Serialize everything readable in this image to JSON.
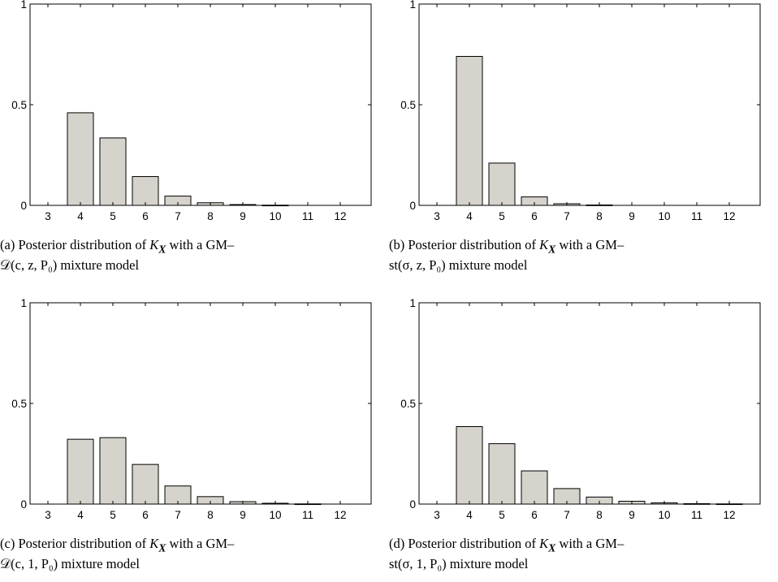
{
  "chart_data": [
    {
      "type": "bar",
      "categories": [
        "3",
        "4",
        "5",
        "6",
        "7",
        "8",
        "9",
        "10",
        "11",
        "12"
      ],
      "values": [
        0,
        0.46,
        0.335,
        0.143,
        0.046,
        0.013,
        0.004,
        0.001,
        0.0,
        0.0
      ],
      "ylim": [
        0,
        1
      ],
      "yticks": [
        "0",
        "0.5",
        "1"
      ],
      "grid": false,
      "caption": {
        "label": "(a) Posterior distribution of",
        "var": "K",
        "sub": "X",
        "line1_rest": "with a GM–",
        "line2": "𝒟(c, z, P₀) mixture model"
      }
    },
    {
      "type": "bar",
      "categories": [
        "3",
        "4",
        "5",
        "6",
        "7",
        "8",
        "9",
        "10",
        "11",
        "12"
      ],
      "values": [
        0,
        0.74,
        0.21,
        0.042,
        0.008,
        0.002,
        0.0,
        0.0,
        0.0,
        0.0
      ],
      "ylim": [
        0,
        1
      ],
      "yticks": [
        "0",
        "0.5",
        "1"
      ],
      "grid": false,
      "caption": {
        "label": "(b) Posterior distribution of",
        "var": "K",
        "sub": "X",
        "line1_rest": "with a GM–",
        "line2": "st(σ, z, P₀) mixture model"
      }
    },
    {
      "type": "bar",
      "categories": [
        "3",
        "4",
        "5",
        "6",
        "7",
        "8",
        "9",
        "10",
        "11",
        "12"
      ],
      "values": [
        0,
        0.322,
        0.33,
        0.197,
        0.09,
        0.037,
        0.012,
        0.004,
        0.001,
        0.0
      ],
      "ylim": [
        0,
        1
      ],
      "yticks": [
        "0",
        "0.5",
        "1"
      ],
      "grid": false,
      "caption": {
        "label": "(c) Posterior distribution of",
        "var": "K",
        "sub": "X",
        "line1_rest": "with a GM–",
        "line2": "𝒟(c, 1, P₀) mixture model"
      }
    },
    {
      "type": "bar",
      "categories": [
        "3",
        "4",
        "5",
        "6",
        "7",
        "8",
        "9",
        "10",
        "11",
        "12"
      ],
      "values": [
        0,
        0.385,
        0.3,
        0.165,
        0.077,
        0.035,
        0.014,
        0.006,
        0.002,
        0.001
      ],
      "ylim": [
        0,
        1
      ],
      "yticks": [
        "0",
        "0.5",
        "1"
      ],
      "grid": false,
      "caption": {
        "label": "(d) Posterior distribution of",
        "var": "K",
        "sub": "X",
        "line1_rest": "with a GM–",
        "line2": "st(σ, 1, P₀) mixture model"
      }
    }
  ],
  "colors": {
    "bar_fill": "#d6d3cc",
    "bar_stroke": "#000000",
    "axis": "#000000"
  }
}
